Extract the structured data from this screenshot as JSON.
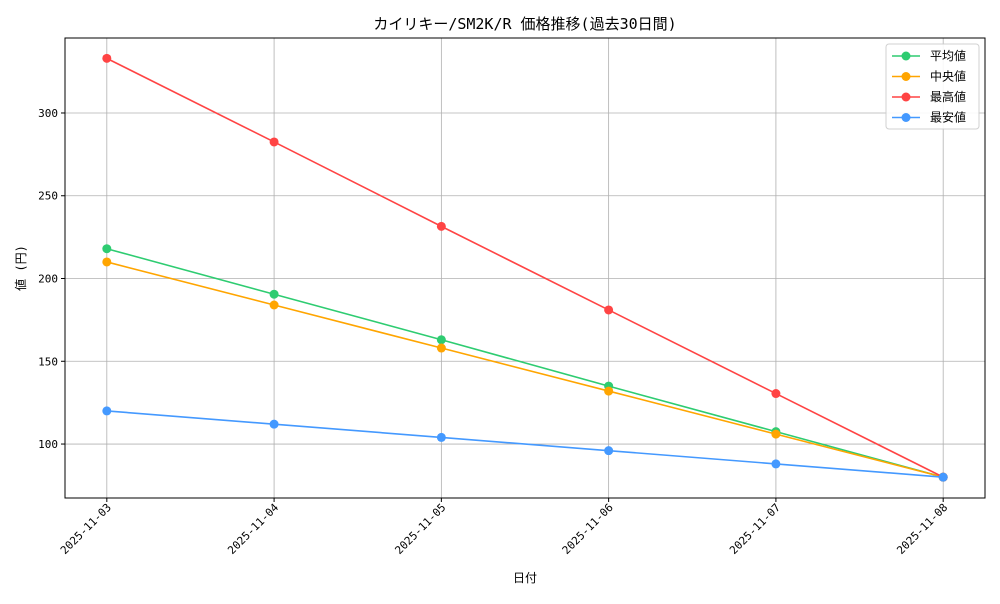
{
  "chart_data": {
    "type": "line",
    "title": "カイリキー/SM2K/R 価格推移(過去30日間)",
    "xlabel": "日付",
    "ylabel": "値 (円)",
    "categories": [
      "2025-11-03",
      "2025-11-04",
      "2025-11-05",
      "2025-11-06",
      "2025-11-07",
      "2025-11-08"
    ],
    "ylim": [
      67.4,
      345.3
    ],
    "yticks": [
      100,
      150,
      200,
      250,
      300
    ],
    "grid": true,
    "legend_position": "top-right",
    "series": [
      {
        "name": "平均値",
        "color": "#2ecc71",
        "values": [
          218,
          190.5,
          163,
          135,
          107.5,
          80
        ]
      },
      {
        "name": " 中央値",
        "color": "#ffa500",
        "values": [
          210,
          184,
          158,
          132,
          106,
          80
        ]
      },
      {
        "name": "最高値",
        "color": "#ff4444",
        "values": [
          333,
          282.5,
          231.5,
          181,
          130.5,
          80
        ]
      },
      {
        "name": "最安値",
        "color": "#4499ff",
        "values": [
          120,
          112,
          104,
          96,
          88,
          80
        ]
      }
    ]
  }
}
